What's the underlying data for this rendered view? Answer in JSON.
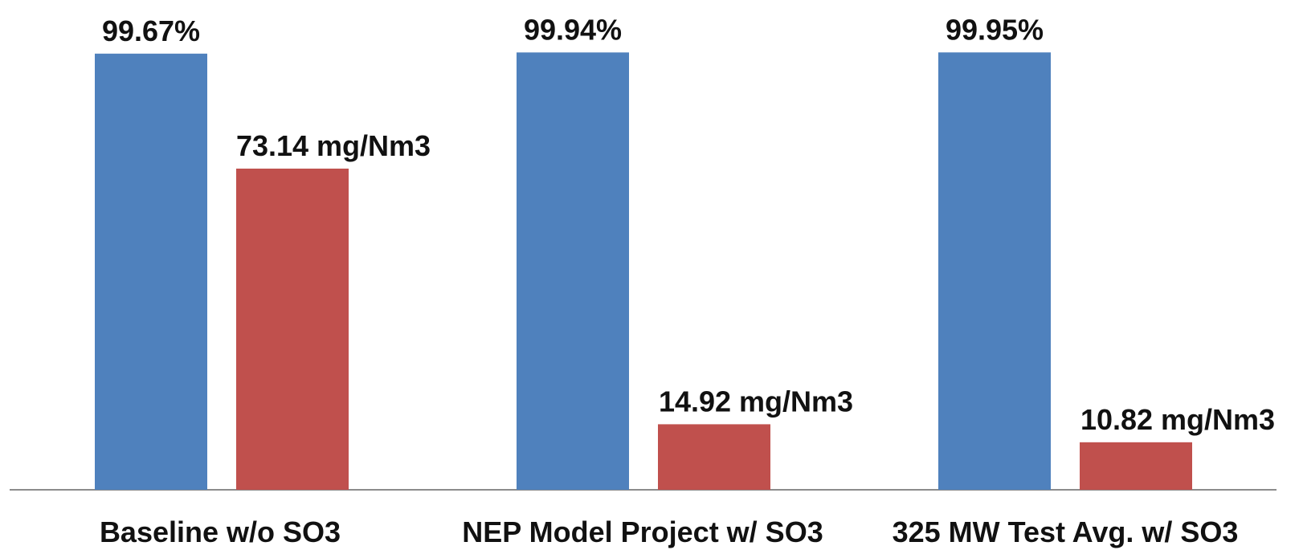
{
  "chart_data": {
    "type": "bar",
    "title": "",
    "xlabel": "",
    "ylabel": "",
    "categories": [
      "Baseline w/o SO3",
      "NEP Model Project w/ SO3",
      "325 MW Test Avg. w/ SO3"
    ],
    "series": [
      {
        "color": "#4f81bd",
        "values": [
          99.67,
          99.94,
          99.95
        ],
        "labels": [
          "99.67%",
          "99.94%",
          "99.95%"
        ]
      },
      {
        "color": "#c0504d",
        "values": [
          73.14,
          14.92,
          10.82
        ],
        "labels": [
          "73.14 mg/Nm3",
          "14.92 mg/Nm3",
          "10.82 mg/Nm3"
        ]
      }
    ],
    "legend": "none",
    "grid": false
  }
}
